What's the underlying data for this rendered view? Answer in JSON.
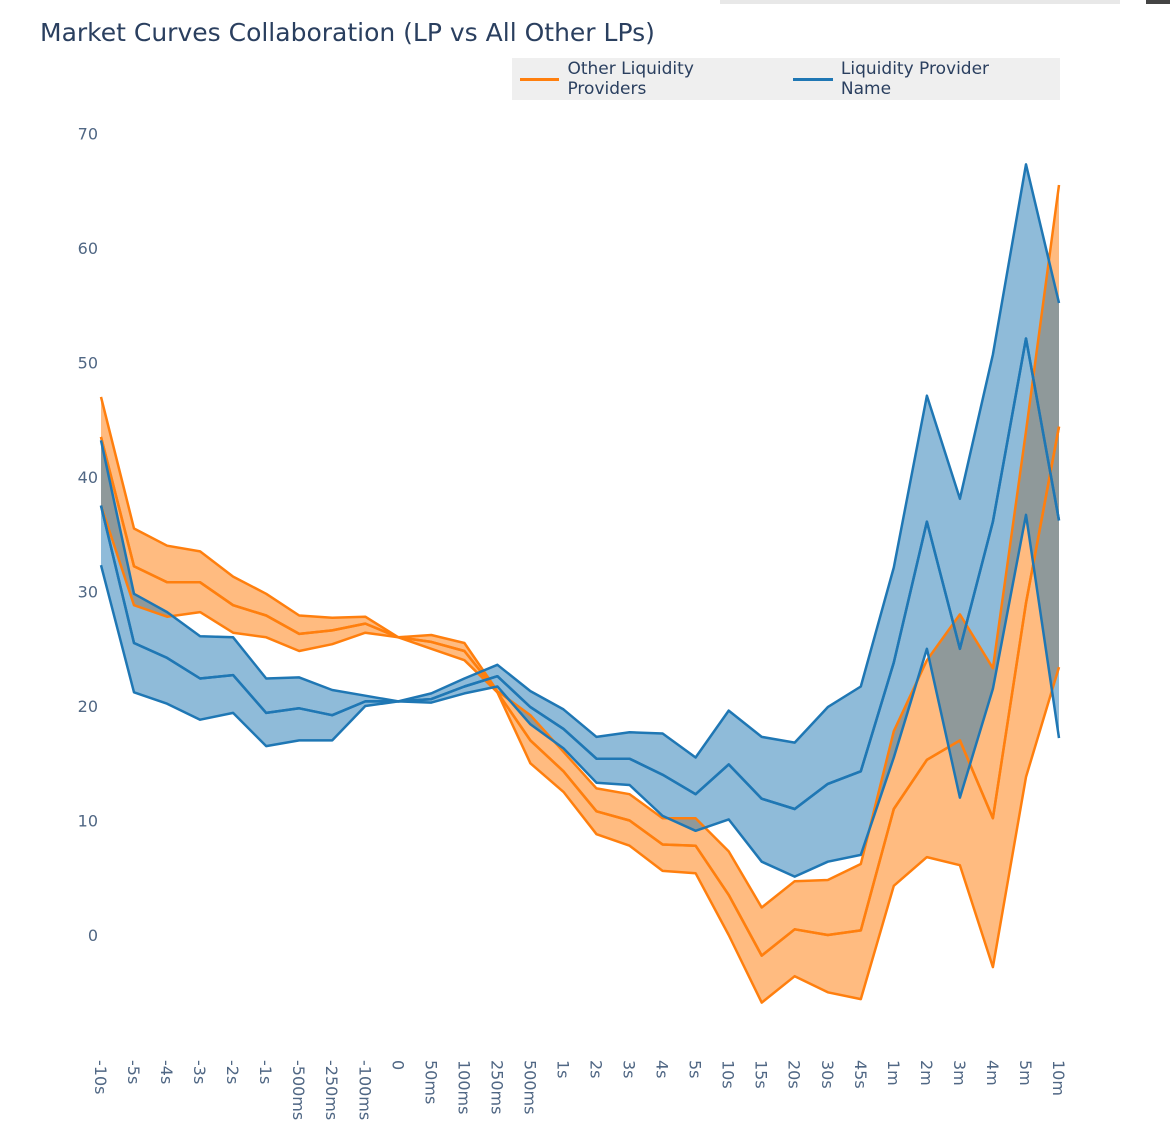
{
  "chart_data": {
    "type": "area",
    "title": "Market Curves Collaboration (LP vs All Other LPs)",
    "legend_placement": "top-right",
    "grid": false,
    "ylim": [
      -10,
      72
    ],
    "yticks": [
      0,
      10,
      20,
      30,
      40,
      50,
      60,
      70
    ],
    "categories": [
      "-10s",
      "-5s",
      "-4s",
      "-3s",
      "-2s",
      "-1s",
      "-500ms",
      "-250ms",
      "-100ms",
      "0",
      "50ms",
      "100ms",
      "250ms",
      "500ms",
      "1s",
      "2s",
      "3s",
      "4s",
      "5s",
      "10s",
      "15s",
      "20s",
      "30s",
      "45s",
      "1m",
      "2m",
      "3m",
      "4m",
      "5m",
      "10m"
    ],
    "series": [
      {
        "name": "Other Liquidity Providers",
        "color": "#ff7f0e",
        "fill": "#ffbb80",
        "bands": [
          {
            "upper": [
              47,
              35.5,
              34,
              33.5,
              31.3,
              29.8,
              27.9,
              27.7,
              27.8,
              26,
              26.2,
              25.5,
              21.3,
              19.2,
              16,
              12.8,
              12.3,
              10.2,
              10.2,
              7.3,
              2.4,
              4.7,
              4.8,
              6.2,
              17.8,
              24,
              28,
              23.3,
              44,
              65.5
            ],
            "lower": [
              37.5,
              28.8,
              27.8,
              28.2,
              26.4,
              26,
              24.8,
              25.4,
              26.4,
              26,
              25,
              24,
              21.2,
              15,
              12.5,
              8.8,
              7.8,
              5.6,
              5.4,
              0,
              -5.9,
              -3.6,
              -5,
              -5.6,
              4.3,
              6.8,
              6.1,
              -2.8,
              13.8,
              23.4
            ]
          },
          {
            "upper": [
              43.5,
              32.2,
              30.8,
              30.8,
              28.8,
              27.9,
              26.3,
              26.6,
              27.2,
              26,
              25.6,
              24.8,
              21.2,
              17,
              14.3,
              10.8,
              10,
              7.9,
              7.8,
              3.5,
              -1.8,
              0.5,
              0,
              0.4,
              11,
              15.3,
              17,
              10.2,
              29,
              44.4
            ],
            "lower": [
              43.5,
              32.2,
              30.8,
              30.8,
              28.8,
              27.9,
              26.3,
              26.6,
              27.2,
              26,
              25.6,
              24.8,
              21.2,
              17,
              14.3,
              10.8,
              10,
              7.9,
              7.8,
              3.5,
              -1.8,
              0.5,
              0,
              0.4,
              11,
              15.3,
              17,
              10.2,
              29,
              44.4
            ]
          }
        ]
      },
      {
        "name": "Liquidity Provider Name",
        "color": "#1f77b4",
        "fill": "rgba(31,119,180,0.5)",
        "bands": [
          {
            "upper": [
              43.2,
              29.8,
              28.2,
              26.1,
              26,
              22.4,
              22.5,
              21.4,
              20.9,
              20.4,
              21.1,
              22.4,
              23.6,
              21.3,
              19.7,
              17.3,
              17.7,
              17.6,
              15.5,
              19.6,
              17.3,
              16.8,
              19.9,
              21.7,
              32.1,
              47.1,
              38.1,
              50.7,
              67.3,
              55.2
            ],
            "lower": [
              32.3,
              21.2,
              20.2,
              18.8,
              19.4,
              16.5,
              17,
              17,
              20,
              20.4,
              20.3,
              21.1,
              21.7,
              18.4,
              16.3,
              13.3,
              13.1,
              10.4,
              9.1,
              10.1,
              6.4,
              5.1,
              6.4,
              7,
              15.5,
              25,
              12,
              21.5,
              36.7,
              17.2
            ]
          },
          {
            "upper": [
              37.5,
              25.5,
              24.2,
              22.4,
              22.7,
              19.4,
              19.8,
              19.2,
              20.4,
              20.4,
              20.6,
              21.7,
              22.6,
              19.9,
              18,
              15.4,
              15.4,
              14,
              12.3,
              14.9,
              11.9,
              11,
              13.2,
              14.3,
              23.8,
              36.1,
              25,
              36.1,
              52.1,
              36.2
            ],
            "lower": [
              37.5,
              25.5,
              24.2,
              22.4,
              22.7,
              19.4,
              19.8,
              19.2,
              20.4,
              20.4,
              20.6,
              21.7,
              22.6,
              19.9,
              18,
              15.4,
              15.4,
              14,
              12.3,
              14.9,
              11.9,
              11,
              13.2,
              14.3,
              23.8,
              36.1,
              25,
              36.1,
              52.1,
              36.2
            ]
          }
        ]
      }
    ]
  }
}
